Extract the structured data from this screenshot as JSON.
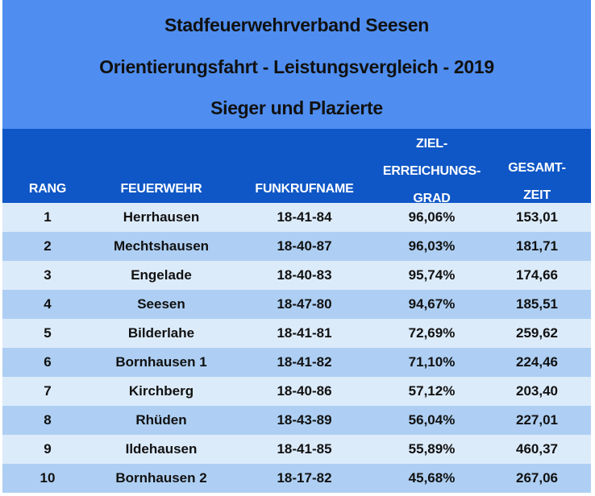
{
  "header": {
    "title": "Stadfeuerwehrverband Seesen",
    "subtitle": "Orientierungsfahrt - Leistungsvergleich - 2019",
    "caption": "Sieger und Plazierte"
  },
  "columns": {
    "rang": "RANG",
    "feuerwehr": "FEUERWEHR",
    "funkrufname": "FUNKRUFNAME",
    "zielerreichungsgrad": [
      "ZIEL-",
      "ERREICHUNGS-",
      "GRAD"
    ],
    "gesamtzeit": [
      "GESAMT-",
      "ZEIT"
    ]
  },
  "colors": {
    "title_band": "#4f8ef0",
    "column_header": "#0f57c6",
    "row_light": "#dcebfa",
    "row_dark": "#aecff3"
  },
  "rows": [
    {
      "rang": "1",
      "feuerwehr": "Herrhausen",
      "funkrufname": "18-41-84",
      "zielerreichungsgrad": "96,06%",
      "gesamtzeit": "153,01"
    },
    {
      "rang": "2",
      "feuerwehr": "Mechtshausen",
      "funkrufname": "18-40-87",
      "zielerreichungsgrad": "96,03%",
      "gesamtzeit": "181,71"
    },
    {
      "rang": "3",
      "feuerwehr": "Engelade",
      "funkrufname": "18-40-83",
      "zielerreichungsgrad": "95,74%",
      "gesamtzeit": "174,66"
    },
    {
      "rang": "4",
      "feuerwehr": "Seesen",
      "funkrufname": "18-47-80",
      "zielerreichungsgrad": "94,67%",
      "gesamtzeit": "185,51"
    },
    {
      "rang": "5",
      "feuerwehr": "Bilderlahe",
      "funkrufname": "18-41-81",
      "zielerreichungsgrad": "72,69%",
      "gesamtzeit": "259,62"
    },
    {
      "rang": "6",
      "feuerwehr": "Bornhausen 1",
      "funkrufname": "18-41-82",
      "zielerreichungsgrad": "71,10%",
      "gesamtzeit": "224,46"
    },
    {
      "rang": "7",
      "feuerwehr": "Kirchberg",
      "funkrufname": "18-40-86",
      "zielerreichungsgrad": "57,12%",
      "gesamtzeit": "203,40"
    },
    {
      "rang": "8",
      "feuerwehr": "Rhüden",
      "funkrufname": "18-43-89",
      "zielerreichungsgrad": "56,04%",
      "gesamtzeit": "227,01"
    },
    {
      "rang": "9",
      "feuerwehr": "Ildehausen",
      "funkrufname": "18-41-85",
      "zielerreichungsgrad": "55,89%",
      "gesamtzeit": "460,37"
    },
    {
      "rang": "10",
      "feuerwehr": "Bornhausen 2",
      "funkrufname": "18-17-82",
      "zielerreichungsgrad": "45,68%",
      "gesamtzeit": "267,06"
    }
  ]
}
